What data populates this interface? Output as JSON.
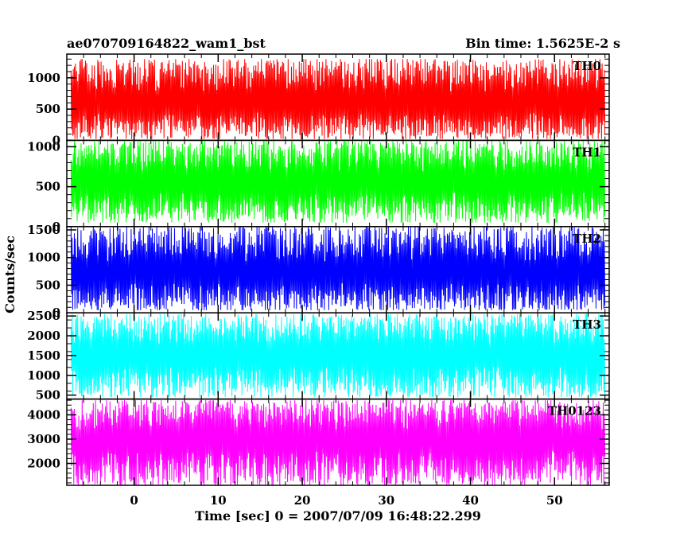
{
  "header": {
    "left_title": "ae070709164822_wam1_bst",
    "right_title": "Bin time: 1.5625E-2 s"
  },
  "chart_data": {
    "type": "line",
    "xlabel": "Time [sec] 0 = 2007/07/09 16:48:22.299",
    "ylabel": "Counts/sec",
    "xlim": [
      -8,
      56.5
    ],
    "data_range": [
      -7.5,
      56
    ],
    "bin_time": 0.015625,
    "x_ticks": [
      0,
      10,
      20,
      30,
      40,
      50
    ],
    "panels": [
      {
        "name": "TH0",
        "color": "#ff0000",
        "ylim": [
          0,
          1380
        ],
        "y_ticks": [
          0,
          500,
          1000
        ],
        "typical_range": [
          20,
          1300
        ],
        "baseline": 600
      },
      {
        "name": "TH1",
        "color": "#00ff00",
        "ylim": [
          0,
          1080
        ],
        "y_ticks": [
          0,
          500,
          1000
        ],
        "typical_range": [
          50,
          1080
        ],
        "baseline": 560
      },
      {
        "name": "TH2",
        "color": "#0000ff",
        "ylim": [
          0,
          1560
        ],
        "y_ticks": [
          0,
          500,
          1000,
          1500
        ],
        "typical_range": [
          50,
          1550
        ],
        "baseline": 700
      },
      {
        "name": "TH3",
        "color": "#00ffff",
        "ylim": [
          400,
          2580
        ],
        "y_ticks": [
          500,
          1000,
          1500,
          2000,
          2500
        ],
        "typical_range": [
          450,
          2550
        ],
        "baseline": 1500
      },
      {
        "name": "TH0123",
        "color": "#ff00ff",
        "ylim": [
          1100,
          4650
        ],
        "y_ticks": [
          2000,
          3000,
          4000
        ],
        "typical_range": [
          1100,
          4600
        ],
        "baseline": 3000
      }
    ]
  }
}
